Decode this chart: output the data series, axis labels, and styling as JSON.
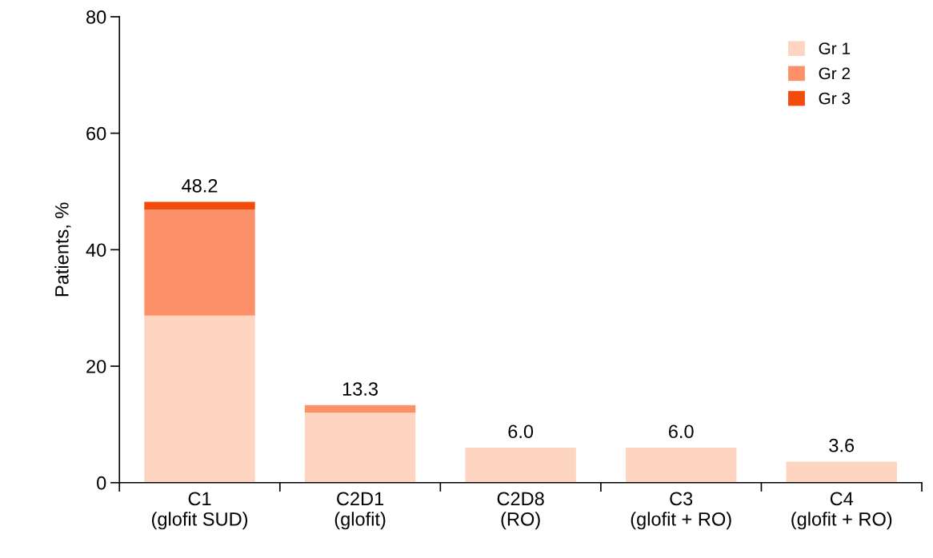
{
  "chart_data": {
    "type": "bar",
    "stacked": true,
    "ylabel": "Patients, %",
    "categories": [
      "C1\n(glofit SUD)",
      "C2D1\n(glofit)",
      "C2D8\n(RO)",
      "C3\n(glofit + RO)",
      "C4\n(glofit + RO)"
    ],
    "series": [
      {
        "name": "Gr 1",
        "color": "#fdd5c0",
        "values": [
          28.7,
          12.0,
          6.0,
          6.0,
          3.6
        ]
      },
      {
        "name": "Gr 2",
        "color": "#fc9169",
        "values": [
          18.2,
          1.3,
          0,
          0,
          0
        ]
      },
      {
        "name": "Gr 3",
        "color": "#f24b0c",
        "values": [
          1.3,
          0,
          0,
          0,
          0
        ]
      }
    ],
    "totals": [
      "48.2",
      "13.3",
      "6.0",
      "6.0",
      "3.6"
    ],
    "ylim": [
      0,
      80
    ],
    "yticks": [
      0,
      20,
      40,
      60,
      80
    ],
    "grid": false,
    "legend": "top right"
  }
}
